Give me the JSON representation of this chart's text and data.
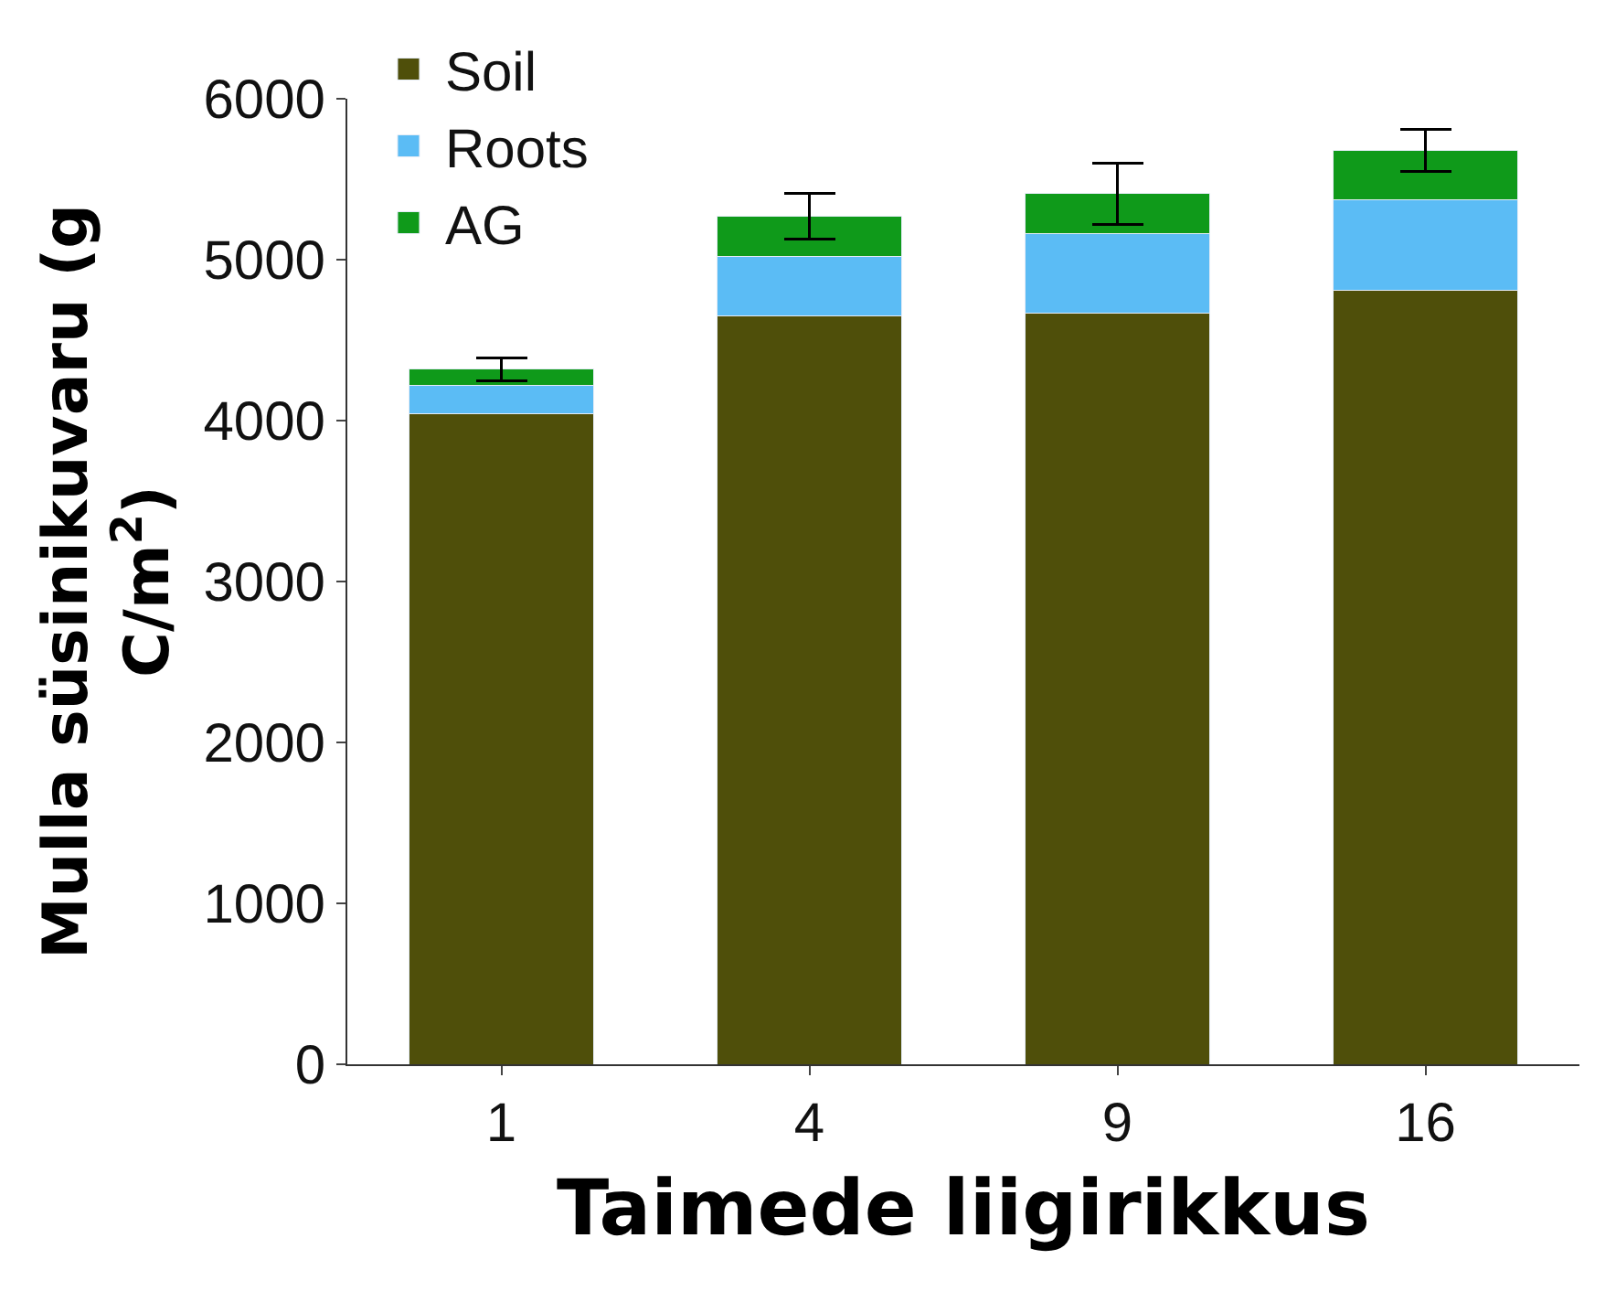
{
  "chart_data": {
    "type": "bar",
    "stacked": true,
    "xlabel": "Taimede liigirikkus",
    "ylabel": "Mulla süsinikuvaru (g C/m$^{2}$)",
    "categories": [
      "1",
      "4",
      "9",
      "16"
    ],
    "series": [
      {
        "name": "Soil",
        "color": "#4f4f0a",
        "values": [
          4040,
          4650,
          4670,
          4810
        ]
      },
      {
        "name": "Roots",
        "color": "#5bbcf5",
        "values": [
          180,
          370,
          490,
          560
        ]
      },
      {
        "name": "AG",
        "color": "#0f9a1a",
        "values": [
          100,
          250,
          250,
          310
        ],
        "errors": [
          70,
          140,
          190,
          130
        ]
      }
    ],
    "ylim": [
      0,
      6000
    ],
    "yticks": [
      0,
      1000,
      2000,
      3000,
      4000,
      5000,
      6000
    ],
    "grid": false,
    "legend": "top left"
  }
}
